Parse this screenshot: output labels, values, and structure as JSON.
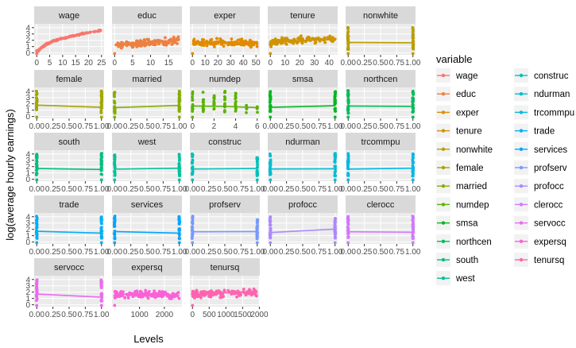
{
  "chart_data": {
    "type": "scatter",
    "title": "",
    "xlabel": "Levels",
    "ylabel": "log(average hourly earnings)",
    "grid": true,
    "facet_layout": "5 columns, free x scales",
    "legend": {
      "title": "variable",
      "placement": "right",
      "columns": 2,
      "entries": [
        "wage",
        "educ",
        "exper",
        "tenure",
        "nonwhite",
        "female",
        "married",
        "numdep",
        "smsa",
        "northcen",
        "south",
        "west",
        "construc",
        "ndurman",
        "trcommpu",
        "trade",
        "services",
        "profserv",
        "profocc",
        "clerocc",
        "servocc",
        "expersq",
        "tenursq"
      ]
    },
    "y_ticks": [
      "0",
      "1",
      "2",
      "3",
      "4"
    ],
    "ylim": [
      -0.3,
      4.6
    ],
    "panels": [
      {
        "name": "wage",
        "color": "#F8766D",
        "xlim": [
          0,
          25
        ],
        "ticks": [
          "0",
          "5",
          "10",
          "15",
          "20",
          "25"
        ],
        "kind": "continuous",
        "line": [
          [
            0.5,
            0.3
          ],
          [
            3,
            1.2
          ],
          [
            6,
            1.8
          ],
          [
            10,
            2.3
          ],
          [
            15,
            2.8
          ],
          [
            20,
            3.3
          ],
          [
            25,
            3.5
          ]
        ]
      },
      {
        "name": "educ",
        "color": "#ED8141",
        "xlim": [
          0,
          18
        ],
        "ticks": [
          "0",
          "5",
          "10",
          "15"
        ],
        "kind": "continuous",
        "line": [
          [
            0,
            1.2
          ],
          [
            8,
            1.5
          ],
          [
            12,
            1.7
          ],
          [
            18,
            2.1
          ]
        ]
      },
      {
        "name": "exper",
        "color": "#E08B00",
        "xlim": [
          0,
          51
        ],
        "ticks": [
          "0",
          "10",
          "20",
          "30",
          "40",
          "50"
        ],
        "kind": "continuous",
        "line": [
          [
            0,
            1.5
          ],
          [
            15,
            1.7
          ],
          [
            30,
            1.7
          ],
          [
            51,
            1.5
          ]
        ]
      },
      {
        "name": "tenure",
        "color": "#CF9400",
        "xlim": [
          0,
          44
        ],
        "ticks": [
          "0",
          "10",
          "20",
          "30",
          "40"
        ],
        "kind": "continuous",
        "line": [
          [
            0,
            1.5
          ],
          [
            10,
            1.8
          ],
          [
            25,
            2.0
          ],
          [
            44,
            2.1
          ]
        ]
      },
      {
        "name": "nonwhite",
        "color": "#BB9D00",
        "xlim": [
          0,
          1
        ],
        "ticks": [
          "0.00",
          "0.25",
          "0.50",
          "0.75",
          "1.00"
        ],
        "kind": "binary",
        "line": [
          [
            0,
            1.65
          ],
          [
            1,
            1.6
          ]
        ]
      },
      {
        "name": "female",
        "color": "#A3A500",
        "xlim": [
          0,
          1
        ],
        "ticks": [
          "0.00",
          "0.25",
          "0.50",
          "0.75",
          "1.00"
        ],
        "kind": "binary",
        "line": [
          [
            0,
            1.8
          ],
          [
            1,
            1.45
          ]
        ]
      },
      {
        "name": "married",
        "color": "#85AD00",
        "xlim": [
          0,
          1
        ],
        "ticks": [
          "0.00",
          "0.25",
          "0.50",
          "0.75",
          "1.00"
        ],
        "kind": "binary",
        "line": [
          [
            0,
            1.4
          ],
          [
            1,
            1.75
          ]
        ]
      },
      {
        "name": "numdep",
        "color": "#5BB300",
        "xlim": [
          0,
          6
        ],
        "ticks": [
          "0",
          "2",
          "4",
          "6"
        ],
        "kind": "discrete",
        "line": [
          [
            0,
            1.65
          ],
          [
            3,
            1.6
          ],
          [
            6,
            1.4
          ]
        ]
      },
      {
        "name": "smsa",
        "color": "#00B81F",
        "xlim": [
          0,
          1
        ],
        "ticks": [
          "0.00",
          "0.25",
          "0.50",
          "0.75",
          "1.00"
        ],
        "kind": "binary",
        "line": [
          [
            0,
            1.45
          ],
          [
            1,
            1.7
          ]
        ]
      },
      {
        "name": "northcen",
        "color": "#00BC59",
        "xlim": [
          0,
          1
        ],
        "ticks": [
          "0.00",
          "0.25",
          "0.50",
          "0.75",
          "1.00"
        ],
        "kind": "binary",
        "line": [
          [
            0,
            1.65
          ],
          [
            1,
            1.6
          ]
        ]
      },
      {
        "name": "south",
        "color": "#00BF7D",
        "xlim": [
          0,
          1
        ],
        "ticks": [
          "0.00",
          "0.25",
          "0.50",
          "0.75",
          "1.00"
        ],
        "kind": "binary",
        "line": [
          [
            0,
            1.7
          ],
          [
            1,
            1.55
          ]
        ]
      },
      {
        "name": "west",
        "color": "#00C19C",
        "xlim": [
          0,
          1
        ],
        "ticks": [
          "0.00",
          "0.25",
          "0.50",
          "0.75",
          "1.00"
        ],
        "kind": "binary",
        "line": [
          [
            0,
            1.6
          ],
          [
            1,
            1.75
          ]
        ]
      },
      {
        "name": "construc",
        "color": "#00C0B8",
        "xlim": [
          0,
          1
        ],
        "ticks": [
          "0.00",
          "0.25",
          "0.50",
          "0.75",
          "1.00"
        ],
        "kind": "binary",
        "line": [
          [
            0,
            1.62
          ],
          [
            1,
            1.7
          ]
        ]
      },
      {
        "name": "ndurman",
        "color": "#00BDD0",
        "xlim": [
          0,
          1
        ],
        "ticks": [
          "0.00",
          "0.25",
          "0.50",
          "0.75",
          "1.00"
        ],
        "kind": "binary",
        "line": [
          [
            0,
            1.62
          ],
          [
            1,
            1.65
          ]
        ]
      },
      {
        "name": "trcommpu",
        "color": "#00B8E5",
        "xlim": [
          0,
          1
        ],
        "ticks": [
          "0.00",
          "0.25",
          "0.50",
          "0.75",
          "1.00"
        ],
        "kind": "binary",
        "line": [
          [
            0,
            1.61
          ],
          [
            1,
            1.75
          ]
        ]
      },
      {
        "name": "trade",
        "color": "#00B0F6",
        "xlim": [
          0,
          1
        ],
        "ticks": [
          "0.00",
          "0.25",
          "0.50",
          "0.75",
          "1.00"
        ],
        "kind": "binary",
        "line": [
          [
            0,
            1.7
          ],
          [
            1,
            1.4
          ]
        ]
      },
      {
        "name": "services",
        "color": "#00A5FF",
        "xlim": [
          0,
          1
        ],
        "ticks": [
          "0.00",
          "0.25",
          "0.50",
          "0.75",
          "1.00"
        ],
        "kind": "binary",
        "line": [
          [
            0,
            1.65
          ],
          [
            1,
            1.4
          ]
        ]
      },
      {
        "name": "profserv",
        "color": "#7799FF",
        "xlim": [
          0,
          1
        ],
        "ticks": [
          "0.00",
          "0.25",
          "0.50",
          "0.75",
          "1.00"
        ],
        "kind": "binary",
        "line": [
          [
            0,
            1.62
          ],
          [
            1,
            1.65
          ]
        ]
      },
      {
        "name": "profocc",
        "color": "#AC88FF",
        "xlim": [
          0,
          1
        ],
        "ticks": [
          "0.00",
          "0.25",
          "0.50",
          "0.75",
          "1.00"
        ],
        "kind": "binary",
        "line": [
          [
            0,
            1.5
          ],
          [
            1,
            2.05
          ]
        ]
      },
      {
        "name": "clerocc",
        "color": "#D177FF",
        "xlim": [
          0,
          1
        ],
        "ticks": [
          "0.00",
          "0.25",
          "0.50",
          "0.75",
          "1.00"
        ],
        "kind": "binary",
        "line": [
          [
            0,
            1.63
          ],
          [
            1,
            1.55
          ]
        ]
      },
      {
        "name": "servocc",
        "color": "#EC69EF",
        "xlim": [
          0,
          1
        ],
        "ticks": [
          "0.00",
          "0.25",
          "0.50",
          "0.75",
          "1.00"
        ],
        "kind": "binary",
        "line": [
          [
            0,
            1.7
          ],
          [
            1,
            1.2
          ]
        ]
      },
      {
        "name": "expersq",
        "color": "#FB61D7",
        "xlim": [
          0,
          2601
        ],
        "ticks": [
          "1000",
          "2000"
        ],
        "kind": "continuous",
        "line": [
          [
            0,
            1.6
          ],
          [
            500,
            1.7
          ],
          [
            1000,
            1.65
          ],
          [
            2601,
            1.5
          ]
        ]
      },
      {
        "name": "tenursq",
        "color": "#FF64B0",
        "xlim": [
          0,
          1936
        ],
        "ticks": [
          "0",
          "500",
          "1000",
          "1500",
          "2000"
        ],
        "kind": "continuous",
        "line": [
          [
            0,
            1.6
          ],
          [
            500,
            1.8
          ],
          [
            1000,
            1.9
          ],
          [
            1936,
            2.0
          ]
        ]
      }
    ]
  }
}
